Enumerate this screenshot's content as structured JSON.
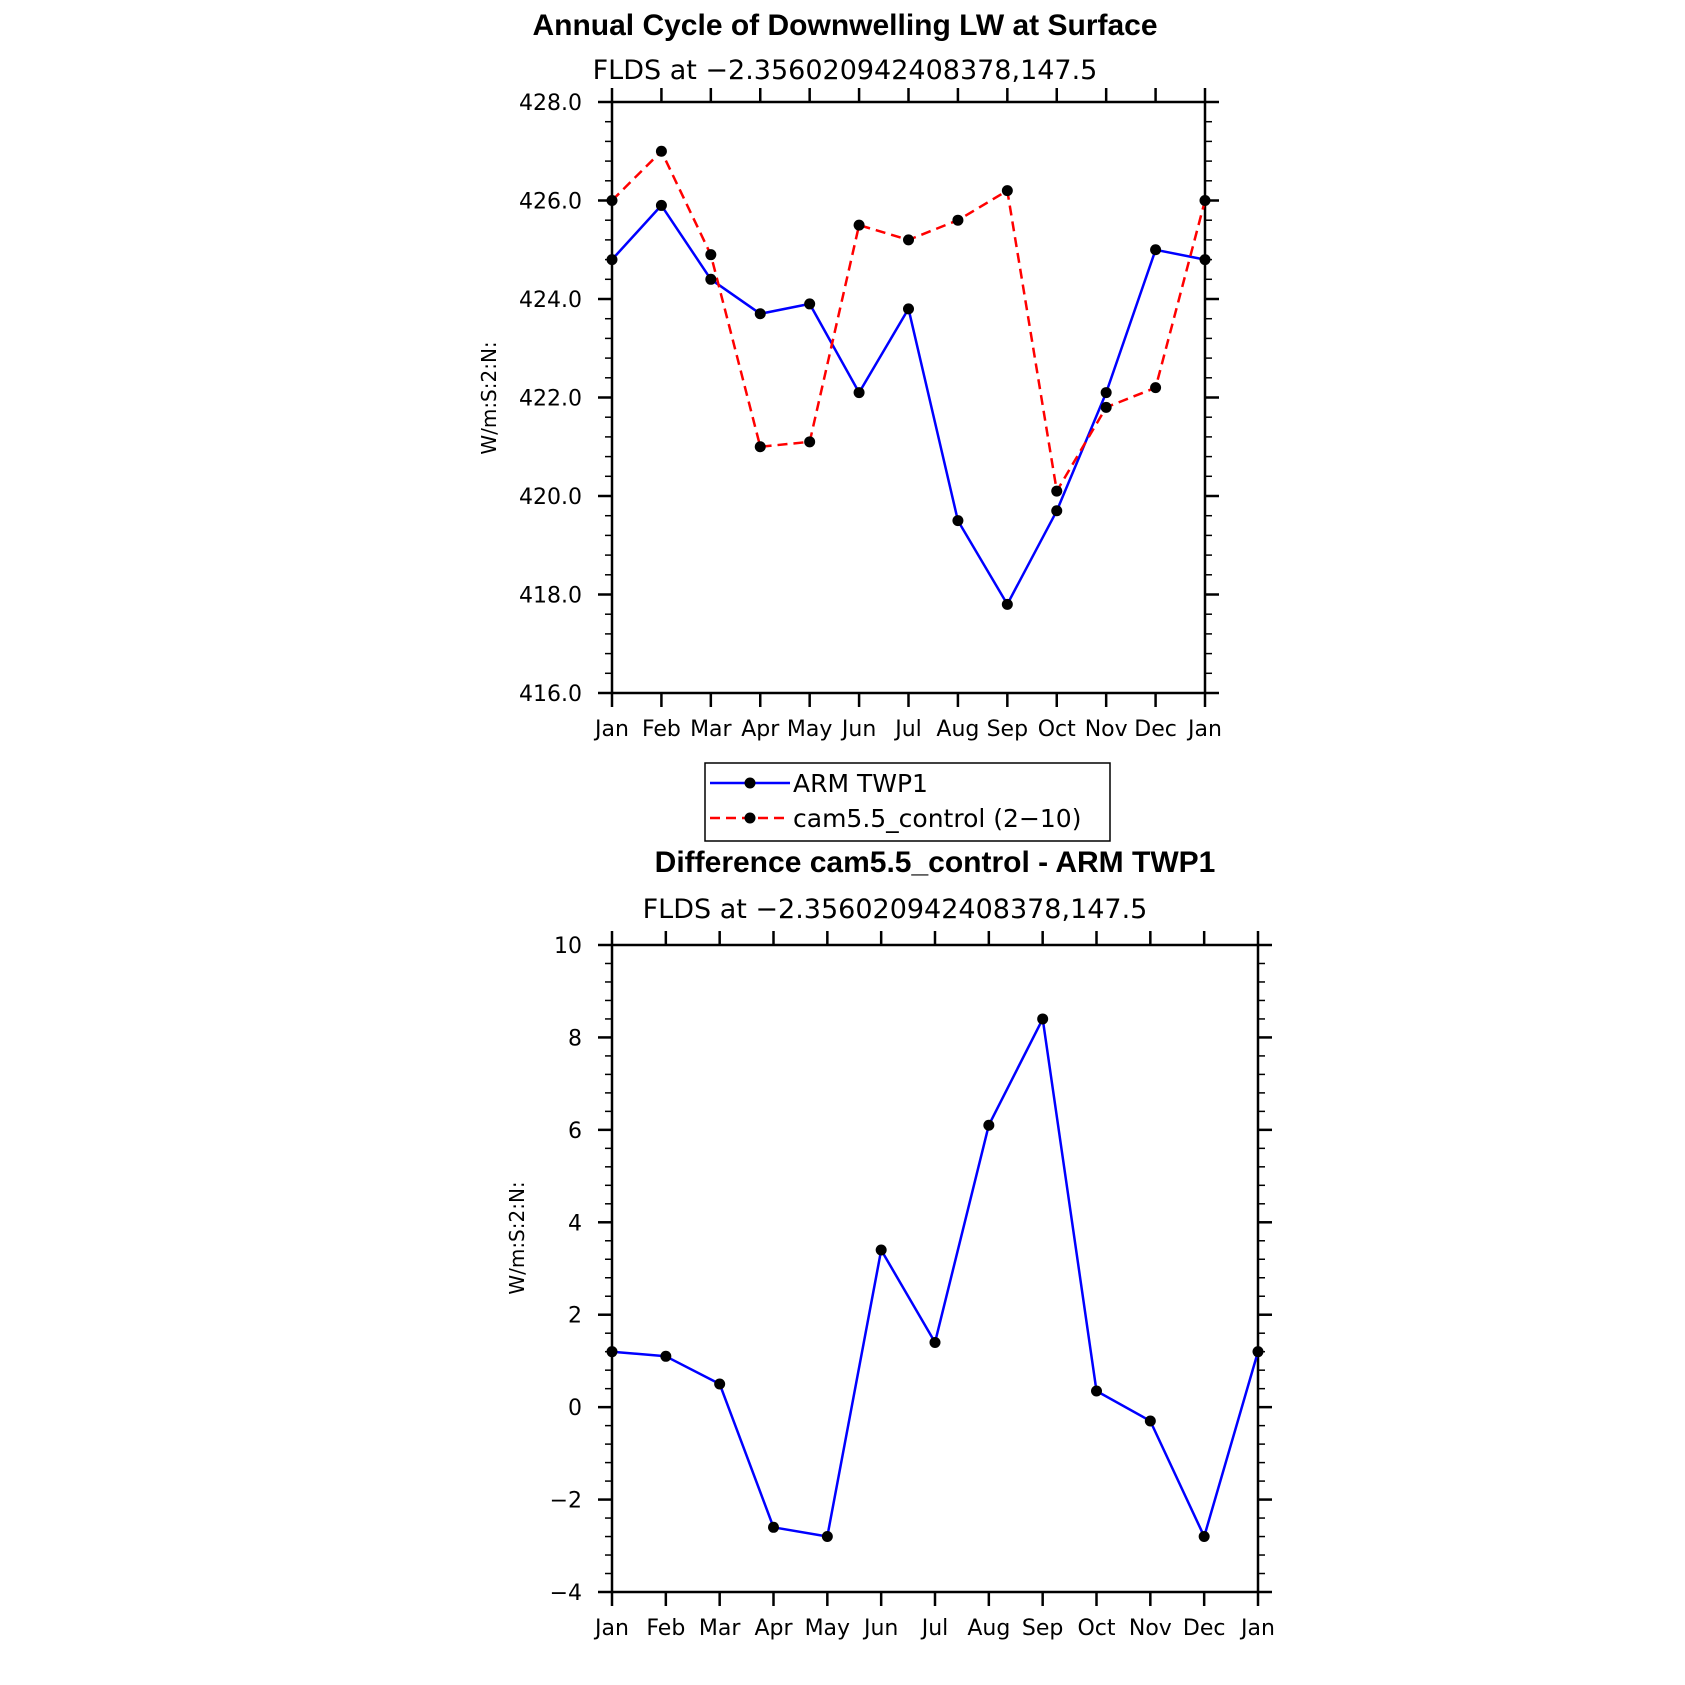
{
  "chart_data": [
    {
      "type": "line",
      "title": "Annual Cycle of Downwelling LW at Surface",
      "subtitle": "FLDS at −2.356020942408378,147.5",
      "ylabel": "W/m:S:2:N:",
      "xlabel": "",
      "categories": [
        "Jan",
        "Feb",
        "Mar",
        "Apr",
        "May",
        "Jun",
        "Jul",
        "Aug",
        "Sep",
        "Oct",
        "Nov",
        "Dec",
        "Jan"
      ],
      "ylim": [
        416,
        428
      ],
      "yticks": [
        "416.0",
        "418.0",
        "420.0",
        "422.0",
        "424.0",
        "426.0",
        "428.0"
      ],
      "grid": false,
      "legend": "below",
      "series": [
        {
          "name": "ARM TWP1",
          "color": "#0000ff",
          "style": "solid",
          "values": [
            424.8,
            425.9,
            424.4,
            423.7,
            423.9,
            422.1,
            423.8,
            419.5,
            417.8,
            419.7,
            422.1,
            425.0,
            424.8
          ]
        },
        {
          "name": "cam5.5_control (2−10)",
          "color": "#ff0000",
          "style": "dashed",
          "values": [
            426.0,
            427.0,
            424.9,
            421.0,
            421.1,
            425.5,
            425.2,
            425.6,
            426.2,
            420.1,
            421.8,
            422.2,
            426.0
          ]
        }
      ]
    },
    {
      "type": "line",
      "title": "Difference cam5.5_control - ARM TWP1",
      "subtitle": "FLDS at −2.356020942408378,147.5",
      "ylabel": "W/m:S:2:N:",
      "xlabel": "",
      "categories": [
        "Jan",
        "Feb",
        "Mar",
        "Apr",
        "May",
        "Jun",
        "Jul",
        "Aug",
        "Sep",
        "Oct",
        "Nov",
        "Dec",
        "Jan"
      ],
      "ylim": [
        -4,
        10
      ],
      "yticks": [
        "−4",
        "−2",
        "0",
        "2",
        "4",
        "6",
        "8",
        "10"
      ],
      "grid": false,
      "series": [
        {
          "color": "#0000ff",
          "style": "solid",
          "values": [
            1.2,
            1.1,
            0.5,
            -2.6,
            -2.8,
            3.4,
            1.4,
            6.1,
            8.4,
            0.35,
            -0.3,
            -2.8,
            1.2
          ]
        }
      ]
    }
  ]
}
